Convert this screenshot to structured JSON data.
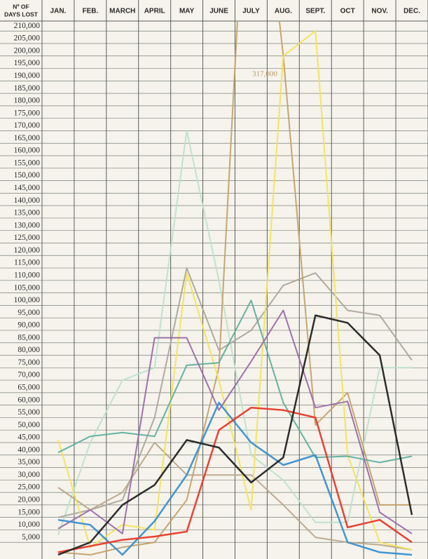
{
  "chart_data": {
    "type": "line",
    "y_label": [
      "Nº OF",
      "DAYS LOST"
    ],
    "annotation": "317,000",
    "categories": [
      "JAN.",
      "FEB.",
      "MARCH",
      "APRIL",
      "MAY",
      "JUNE",
      "JULY",
      "AUG.",
      "SEPT.",
      "OCT",
      "NOV.",
      "DEC."
    ],
    "ylim": [
      0,
      214000
    ],
    "grid": true,
    "yticks": [
      {
        "value": 5000,
        "label": "5,000"
      },
      {
        "value": 10000,
        "label": "10,000"
      },
      {
        "value": 15000,
        "label": "15,000"
      },
      {
        "value": 20000,
        "label": "20,000"
      },
      {
        "value": 25000,
        "label": "25,000"
      },
      {
        "value": 30000,
        "label": "30,000"
      },
      {
        "value": 35000,
        "label": "35,000"
      },
      {
        "value": 40000,
        "label": "40,000"
      },
      {
        "value": 45000,
        "label": "45,000"
      },
      {
        "value": 50000,
        "label": "50,000"
      },
      {
        "value": 55000,
        "label": "55,000"
      },
      {
        "value": 60000,
        "label": "60,000"
      },
      {
        "value": 65000,
        "label": "65,000"
      },
      {
        "value": 70000,
        "label": "70,000"
      },
      {
        "value": 75000,
        "label": "75,000"
      },
      {
        "value": 80000,
        "label": "80,000"
      },
      {
        "value": 85000,
        "label": "85,000"
      },
      {
        "value": 90000,
        "label": "90,000"
      },
      {
        "value": 95000,
        "label": "95,000"
      },
      {
        "value": 100000,
        "label": "100,000"
      },
      {
        "value": 105000,
        "label": "105,000"
      },
      {
        "value": 110000,
        "label": "110,000"
      },
      {
        "value": 115000,
        "label": "115,000"
      },
      {
        "value": 120000,
        "label": "120,000"
      },
      {
        "value": 125000,
        "label": "125,000"
      },
      {
        "value": 130000,
        "label": "130,000"
      },
      {
        "value": 135000,
        "label": "135,000"
      },
      {
        "value": 140000,
        "label": "140,000"
      },
      {
        "value": 145000,
        "label": "145,000"
      },
      {
        "value": 150000,
        "label": "150,000"
      },
      {
        "value": 155000,
        "label": "155,000"
      },
      {
        "value": 160000,
        "label": "160,000"
      },
      {
        "value": 165000,
        "label": "165,000"
      },
      {
        "value": 170000,
        "label": "170,000"
      },
      {
        "value": 175000,
        "label": "175,000"
      },
      {
        "value": 180000,
        "label": "180,000"
      },
      {
        "value": 185000,
        "label": "185,000"
      },
      {
        "value": 190000,
        "label": "190,000"
      },
      {
        "value": 195000,
        "label": "195,000"
      },
      {
        "value": 200000,
        "label": "200,000"
      },
      {
        "value": 205000,
        "label": "205,000"
      },
      {
        "value": 210000,
        "label": "210,000"
      }
    ],
    "series": [
      {
        "color": "#bfe0ca",
        "values": [
          8000,
          45000,
          70000,
          75000,
          170000,
          110000,
          40000,
          30000,
          13000,
          13000,
          75000,
          75000
        ]
      },
      {
        "color": "#aca79d",
        "values": [
          15000,
          18000,
          22000,
          55000,
          115000,
          82000,
          90000,
          108000,
          113000,
          98000,
          96000,
          78000
        ]
      },
      {
        "color": "#b9a78c",
        "values": [
          27000,
          18000,
          25000,
          45000,
          32000,
          32000,
          32000,
          20000,
          7000,
          5000,
          4000,
          2000
        ]
      },
      {
        "color": "#c4a16a",
        "values": [
          1000,
          0,
          3000,
          5000,
          22000,
          75000,
          317000,
          200000,
          52000,
          65000,
          20000,
          20000
        ]
      },
      {
        "color": "#f2e35a",
        "values": [
          46000,
          3000,
          12000,
          10000,
          113000,
          70000,
          18000,
          200000,
          210000,
          40000,
          5000,
          2000
        ]
      },
      {
        "color": "#5fae9e",
        "values": [
          41000,
          47500,
          49000,
          47500,
          76000,
          77000,
          102000,
          61000,
          39000,
          39500,
          37000,
          39500
        ]
      },
      {
        "color": "#9a6aa8",
        "values": [
          10500,
          18000,
          8500,
          87000,
          87000,
          58000,
          77500,
          98000,
          59000,
          61500,
          17000,
          8500
        ]
      },
      {
        "color": "#3a8fd0",
        "values": [
          14000,
          12000,
          0,
          13500,
          32000,
          61000,
          45000,
          36000,
          40000,
          5000,
          1000,
          0
        ]
      },
      {
        "color": "#e8392b",
        "values": [
          1000,
          3500,
          6000,
          7300,
          9300,
          50000,
          59000,
          58000,
          55000,
          11000,
          14000,
          5000
        ]
      },
      {
        "color": "#222222",
        "values": [
          0,
          5000,
          20000,
          28000,
          46000,
          43000,
          29000,
          39000,
          96000,
          93000,
          80000,
          16000
        ]
      }
    ]
  }
}
